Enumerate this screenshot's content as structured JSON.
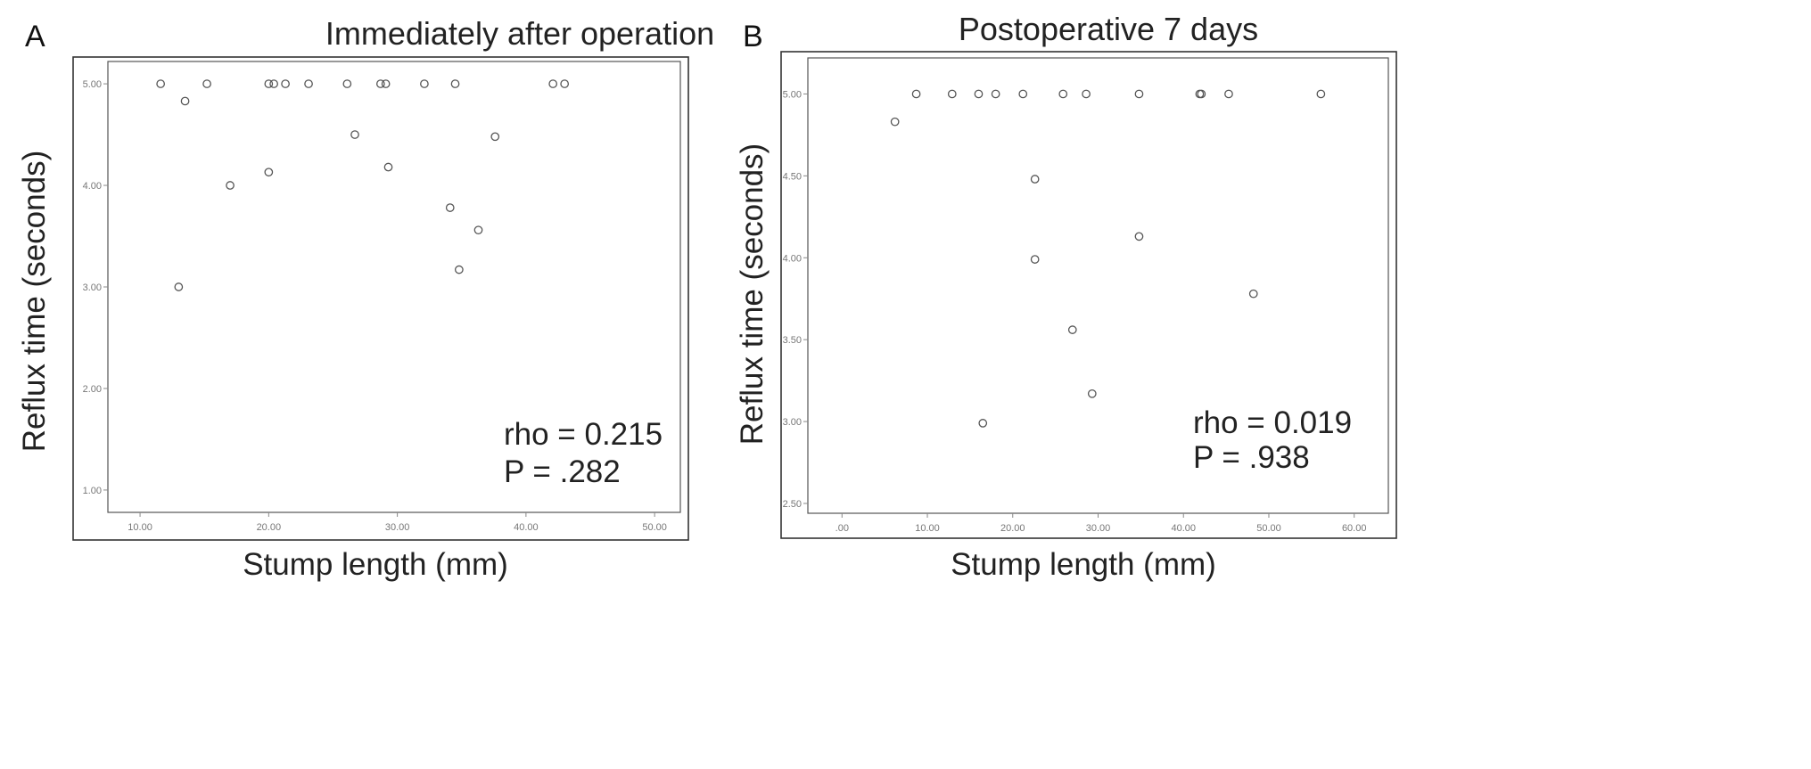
{
  "chart_data": [
    {
      "type": "scatter",
      "panel_letter": "A",
      "title": "Immediately  after operation",
      "xlabel": "Stump  length  (mm)",
      "ylabel": "Reflux time (seconds)",
      "xlim": [
        7.5,
        52.0
      ],
      "ylim": [
        0.78,
        5.22
      ],
      "xticks": [
        "10.00",
        "20.00",
        "30.00",
        "40.00",
        "50.00"
      ],
      "xtick_values": [
        10,
        20,
        30,
        40,
        50
      ],
      "yticks": [
        "1.00",
        "2.00",
        "3.00",
        "4.00",
        "5.00"
      ],
      "ytick_values": [
        1,
        2,
        3,
        4,
        5
      ],
      "grid": false,
      "annotations": [
        "rho = 0.215",
        "P = .282"
      ],
      "points": [
        {
          "x": 11.6,
          "y": 5.0
        },
        {
          "x": 13.5,
          "y": 4.83
        },
        {
          "x": 15.2,
          "y": 5.0
        },
        {
          "x": 13.0,
          "y": 3.0
        },
        {
          "x": 17.0,
          "y": 4.0
        },
        {
          "x": 20.0,
          "y": 4.13
        },
        {
          "x": 20.0,
          "y": 5.0
        },
        {
          "x": 20.4,
          "y": 5.0
        },
        {
          "x": 21.3,
          "y": 5.0
        },
        {
          "x": 23.1,
          "y": 5.0
        },
        {
          "x": 26.1,
          "y": 5.0
        },
        {
          "x": 26.7,
          "y": 4.5
        },
        {
          "x": 28.7,
          "y": 5.0
        },
        {
          "x": 29.1,
          "y": 5.0
        },
        {
          "x": 29.3,
          "y": 4.18
        },
        {
          "x": 32.1,
          "y": 5.0
        },
        {
          "x": 34.1,
          "y": 3.78
        },
        {
          "x": 34.5,
          "y": 5.0
        },
        {
          "x": 34.8,
          "y": 3.17
        },
        {
          "x": 36.3,
          "y": 3.56
        },
        {
          "x": 37.6,
          "y": 4.48
        },
        {
          "x": 42.1,
          "y": 5.0
        },
        {
          "x": 43.0,
          "y": 5.0
        }
      ]
    },
    {
      "type": "scatter",
      "panel_letter": "B",
      "title": "Postoperative 7 days",
      "xlabel": "Stump  length  (mm)",
      "ylabel": "Reflux time (seconds)",
      "xlim": [
        -4.0,
        64.0
      ],
      "ylim": [
        2.44,
        5.22
      ],
      "xticks": [
        ".00",
        "10.00",
        "20.00",
        "30.00",
        "40.00",
        "50.00",
        "60.00"
      ],
      "xtick_values": [
        0,
        10,
        20,
        30,
        40,
        50,
        60
      ],
      "yticks": [
        "2.50",
        "3.00",
        "3.50",
        "4.00",
        "4.50",
        "5.00"
      ],
      "ytick_values": [
        2.5,
        3.0,
        3.5,
        4.0,
        4.5,
        5.0
      ],
      "grid": false,
      "annotations": [
        "rho = 0.019",
        "P = .938"
      ],
      "points": [
        {
          "x": 6.2,
          "y": 4.83
        },
        {
          "x": 8.7,
          "y": 5.0
        },
        {
          "x": 12.9,
          "y": 5.0
        },
        {
          "x": 16.0,
          "y": 5.0
        },
        {
          "x": 18.0,
          "y": 5.0
        },
        {
          "x": 21.2,
          "y": 5.0
        },
        {
          "x": 16.5,
          "y": 2.99
        },
        {
          "x": 22.6,
          "y": 4.48
        },
        {
          "x": 22.6,
          "y": 3.99
        },
        {
          "x": 25.9,
          "y": 5.0
        },
        {
          "x": 27.0,
          "y": 3.56
        },
        {
          "x": 28.6,
          "y": 5.0
        },
        {
          "x": 29.3,
          "y": 3.17
        },
        {
          "x": 34.8,
          "y": 5.0
        },
        {
          "x": 34.8,
          "y": 4.13
        },
        {
          "x": 41.9,
          "y": 5.0
        },
        {
          "x": 42.1,
          "y": 5.0
        },
        {
          "x": 45.3,
          "y": 5.0
        },
        {
          "x": 48.2,
          "y": 3.78
        },
        {
          "x": 56.1,
          "y": 5.0
        }
      ]
    }
  ]
}
